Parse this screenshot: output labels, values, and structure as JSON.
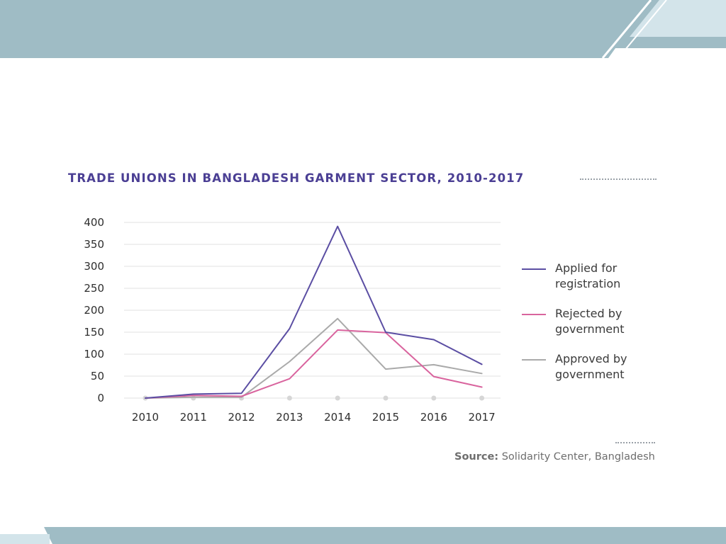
{
  "colors": {
    "band": "#9fbcc5",
    "band_light": "#d3e4ea",
    "title": "#4b3f94",
    "axis_text": "#2e2e2e",
    "grid": "#e2e2e2"
  },
  "chart_data": {
    "type": "line",
    "title": "TRADE UNIONS IN BANGLADESH GARMENT SECTOR, 2010-2017",
    "x": [
      "2010",
      "2011",
      "2012",
      "2013",
      "2014",
      "2015",
      "2016",
      "2017"
    ],
    "y_ticks": [
      "0",
      "50",
      "100",
      "150",
      "200",
      "250",
      "300",
      "350",
      "400"
    ],
    "ylim": [
      0,
      400
    ],
    "grid": true,
    "legend_position": "right",
    "series": [
      {
        "name": "Applied for registration",
        "color": "#5b4ea3",
        "values": [
          0,
          9,
          11,
          158,
          391,
          150,
          133,
          77
        ]
      },
      {
        "name": "Rejected by government",
        "color": "#d9649e",
        "values": [
          0,
          6,
          4,
          44,
          155,
          149,
          49,
          25
        ]
      },
      {
        "name": "Approved by government",
        "color": "#aaaaaa",
        "values": [
          0,
          2,
          2,
          83,
          181,
          66,
          76,
          56
        ]
      }
    ],
    "legend": [
      {
        "line1": "Applied for",
        "line2": "registration"
      },
      {
        "line1": "Rejected by",
        "line2": "government"
      },
      {
        "line1": "Approved by",
        "line2": "government"
      }
    ]
  },
  "source": {
    "label": "Source:",
    "text": "Solidarity Center, Bangladesh"
  }
}
